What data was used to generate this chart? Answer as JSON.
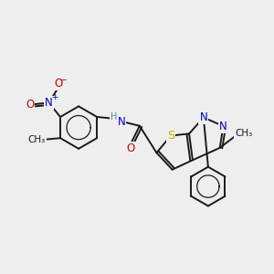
{
  "background_color": "#eeeeee",
  "fig_size": [
    3.0,
    3.0
  ],
  "dpi": 100,
  "bond_color": "#1a1a1a",
  "bond_lw": 1.4,
  "atom_colors": {
    "N": "#0000cc",
    "O": "#cc0000",
    "S": "#b8b800",
    "H": "#4a9090",
    "C": "#1a1a1a"
  },
  "font_size": 8.5,
  "font_size_small": 7.5
}
